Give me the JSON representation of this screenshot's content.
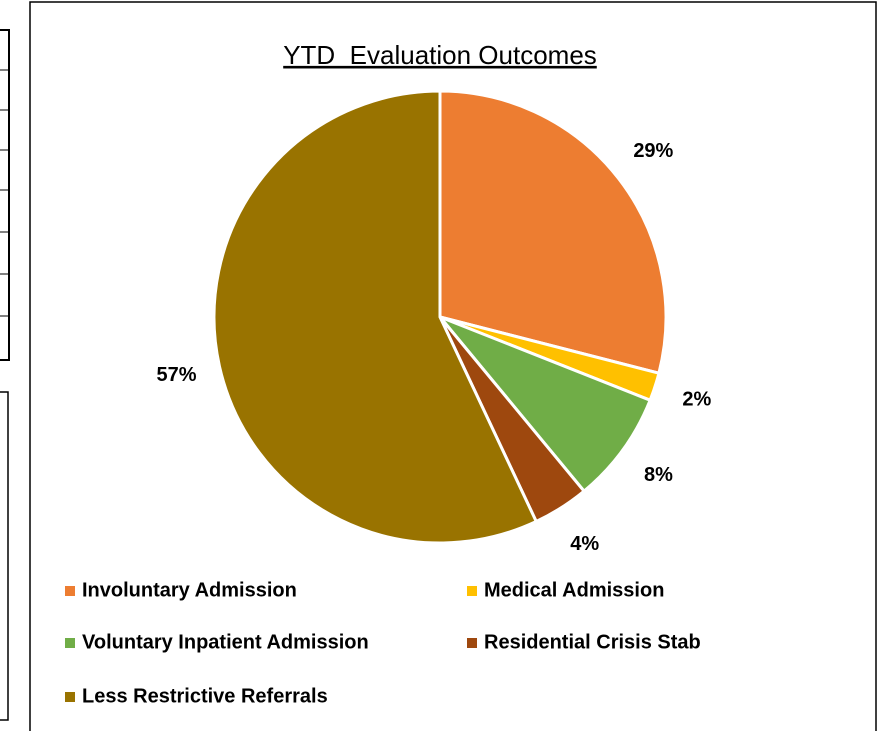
{
  "chart_data": {
    "type": "pie",
    "title": "YTD  Evaluation Outcomes",
    "categories": [
      "Involuntary Admission",
      "Medical Admission",
      "Voluntary Inpatient Admission",
      "Residential Crisis Stab",
      "Less Restrictive Referrals"
    ],
    "values": [
      29,
      2,
      8,
      4,
      57
    ],
    "value_labels": [
      "29%",
      "2%",
      "8%",
      "4%",
      "57%"
    ],
    "colors": [
      "#ED7D31",
      "#FFC000",
      "#70AD47",
      "#9E480E",
      "#997300"
    ],
    "legend": "bottom"
  }
}
